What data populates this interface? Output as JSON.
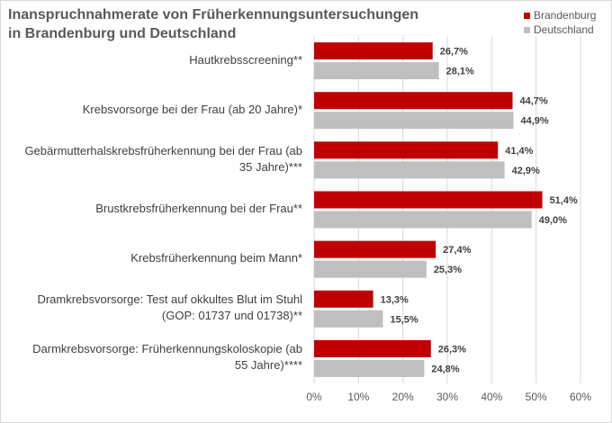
{
  "chart_data": {
    "type": "bar",
    "orientation": "horizontal",
    "title": "Inanspruchnahmerate von Früherkennungsuntersuchungen in Brandenburg und Deutschland",
    "title_lines": [
      "Inanspruchnahmerate von Früherkennungsuntersuchungen",
      "in Brandenburg und Deutschland"
    ],
    "categories": [
      "Hautkrebsscreening**",
      "Krebsvorsorge bei der Frau (ab 20 Jahre)*",
      "Gebärmutterhalskrebsfrüherkennung bei der Frau (ab 35 Jahre)***",
      "Brustkrebsfrüherkennung bei der Frau**",
      "Krebsfrüherkennung beim Mann*",
      "Dramkrebsvorsorge: Test auf okkultes Blut im Stuhl (GOP: 01737 und 01738)**",
      "Darmkrebsvorsorge: Früherkennungskoloskopie (ab 55 Jahre)****"
    ],
    "category_lines": [
      [
        "Hautkrebsscreening**"
      ],
      [
        "Krebsvorsorge bei der Frau (ab 20 Jahre)*"
      ],
      [
        "Gebärmutterhalskrebsfrüherkennung bei der Frau (ab",
        "35 Jahre)***"
      ],
      [
        "Brustkrebsfrüherkennung bei der Frau**"
      ],
      [
        "Krebsfrüherkennung beim Mann*"
      ],
      [
        "Dramkrebsvorsorge: Test auf okkultes Blut im Stuhl",
        "(GOP: 01737 und 01738)**"
      ],
      [
        "Darmkrebsvorsorge: Früherkennungskoloskopie (ab",
        "55 Jahre)****"
      ]
    ],
    "series": [
      {
        "name": "Brandenburg",
        "color": "#c00000",
        "values": [
          26.7,
          44.7,
          41.4,
          51.4,
          27.4,
          13.3,
          26.3
        ],
        "labels": [
          "26,7%",
          "44,7%",
          "41,4%",
          "51,4%",
          "27,4%",
          "13,3%",
          "26,3%"
        ]
      },
      {
        "name": "Deutschland",
        "color": "#bfbfbf",
        "values": [
          28.1,
          44.9,
          42.9,
          49.0,
          25.3,
          15.5,
          24.8
        ],
        "labels": [
          "28,1%",
          "44,9%",
          "42,9%",
          "49,0%",
          "25,3%",
          "15,5%",
          "24,8%"
        ]
      }
    ],
    "xlim": [
      0,
      60
    ],
    "xticks": [
      0,
      10,
      20,
      30,
      40,
      50,
      60
    ],
    "xtick_labels": [
      "0%",
      "10%",
      "20%",
      "30%",
      "40%",
      "50%",
      "60%"
    ],
    "grid": true,
    "legend_position": "top-right"
  }
}
